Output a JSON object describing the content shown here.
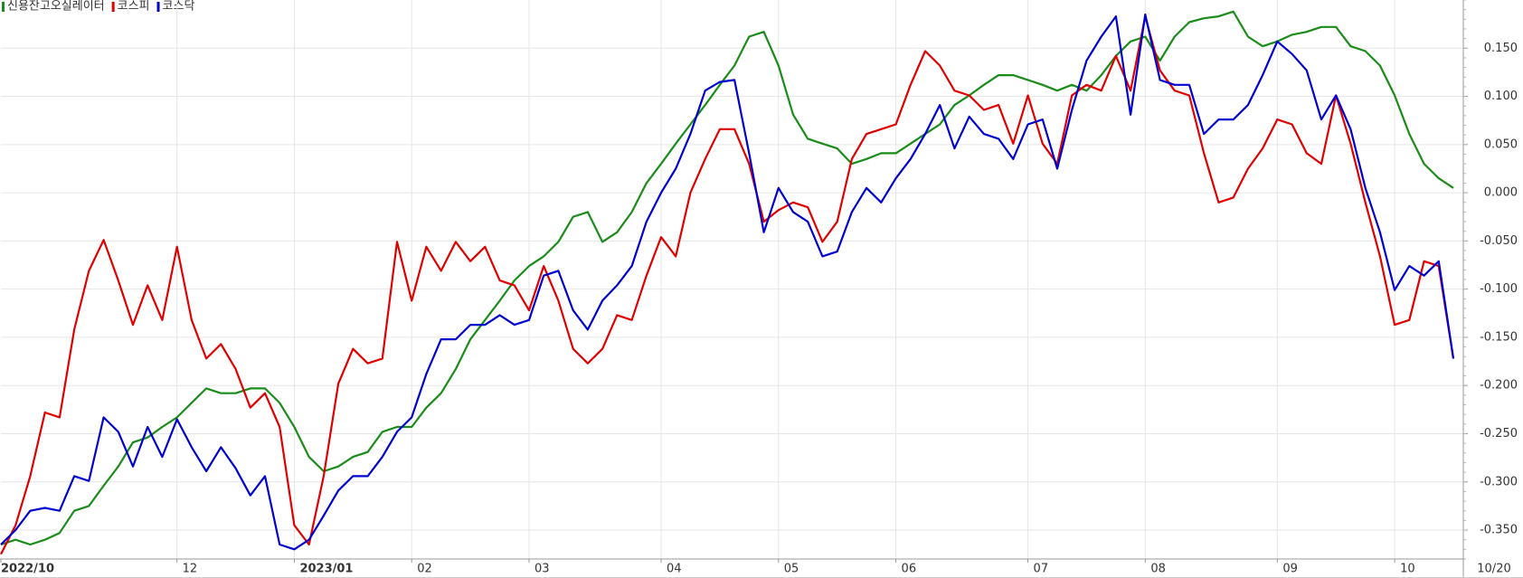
{
  "chart_data": {
    "type": "line",
    "categories": [
      "2022/10",
      null,
      null,
      null,
      null,
      null,
      null,
      null,
      null,
      null,
      null,
      null,
      "12",
      null,
      null,
      null,
      null,
      null,
      null,
      null,
      "2023/01",
      null,
      null,
      null,
      null,
      null,
      null,
      null,
      "02",
      null,
      null,
      null,
      null,
      null,
      null,
      null,
      "03",
      null,
      null,
      null,
      null,
      null,
      null,
      null,
      null,
      "04",
      null,
      null,
      null,
      null,
      null,
      null,
      null,
      "05",
      null,
      null,
      null,
      null,
      null,
      null,
      null,
      "06",
      null,
      null,
      null,
      null,
      null,
      null,
      null,
      null,
      "07",
      null,
      null,
      null,
      null,
      null,
      null,
      null,
      "08",
      null,
      null,
      null,
      null,
      null,
      null,
      null,
      null,
      "09",
      null,
      null,
      null,
      null,
      null,
      null,
      null,
      "10",
      null,
      null,
      null,
      "10/20"
    ],
    "series": [
      {
        "name": "신용잔고오실레이터",
        "color": "#1a8c1a",
        "values": [
          -0.365,
          -0.36,
          -0.365,
          -0.36,
          -0.353,
          -0.33,
          -0.325,
          -0.304,
          -0.284,
          -0.259,
          -0.254,
          -0.243,
          -0.233,
          -0.218,
          -0.203,
          -0.208,
          -0.208,
          -0.203,
          -0.203,
          -0.218,
          -0.243,
          -0.274,
          -0.289,
          -0.284,
          -0.274,
          -0.269,
          -0.248,
          -0.243,
          -0.243,
          -0.223,
          -0.208,
          -0.183,
          -0.152,
          -0.132,
          -0.112,
          -0.091,
          -0.076,
          -0.066,
          -0.051,
          -0.025,
          -0.02,
          -0.051,
          -0.041,
          -0.02,
          0.01,
          0.03,
          0.051,
          0.071,
          0.091,
          0.112,
          0.132,
          0.162,
          0.167,
          0.132,
          0.081,
          0.056,
          0.051,
          0.046,
          0.03,
          0.035,
          0.041,
          0.041,
          0.051,
          0.061,
          0.071,
          0.091,
          0.101,
          0.112,
          0.122,
          0.122,
          0.117,
          0.112,
          0.106,
          0.112,
          0.106,
          0.122,
          0.142,
          0.157,
          0.162,
          0.137,
          0.162,
          0.177,
          0.181,
          0.183,
          0.188,
          0.162,
          0.152,
          0.157,
          0.164,
          0.167,
          0.172,
          0.172,
          0.152,
          0.147,
          0.132,
          0.101,
          0.061,
          0.03,
          0.015,
          0.005
        ]
      },
      {
        "name": "코스피",
        "color": "#e00000",
        "values": [
          -0.375,
          -0.345,
          -0.294,
          -0.228,
          -0.233,
          -0.142,
          -0.081,
          -0.049,
          -0.091,
          -0.137,
          -0.096,
          -0.132,
          -0.056,
          -0.132,
          -0.172,
          -0.157,
          -0.183,
          -0.223,
          -0.208,
          -0.243,
          -0.345,
          -0.365,
          -0.294,
          -0.198,
          -0.162,
          -0.177,
          -0.172,
          -0.051,
          -0.112,
          -0.056,
          -0.081,
          -0.051,
          -0.071,
          -0.056,
          -0.091,
          -0.096,
          -0.122,
          -0.076,
          -0.112,
          -0.162,
          -0.177,
          -0.162,
          -0.127,
          -0.132,
          -0.086,
          -0.046,
          -0.066,
          0.0,
          0.035,
          0.066,
          0.066,
          0.03,
          -0.03,
          -0.018,
          -0.01,
          -0.015,
          -0.051,
          -0.03,
          0.035,
          0.061,
          0.066,
          0.071,
          0.112,
          0.147,
          0.132,
          0.106,
          0.101,
          0.086,
          0.091,
          0.051,
          0.101,
          0.051,
          0.03,
          0.101,
          0.112,
          0.106,
          0.142,
          0.106,
          0.183,
          0.127,
          0.106,
          0.101,
          0.041,
          -0.01,
          -0.005,
          0.025,
          0.046,
          0.076,
          0.071,
          0.041,
          0.03,
          0.101,
          0.051,
          -0.01,
          -0.066,
          -0.137,
          -0.132,
          -0.071,
          -0.076,
          -0.172
        ]
      },
      {
        "name": "코스닥",
        "color": "#0000d0",
        "values": [
          -0.365,
          -0.35,
          -0.33,
          -0.327,
          -0.33,
          -0.294,
          -0.299,
          -0.233,
          -0.248,
          -0.284,
          -0.243,
          -0.274,
          -0.235,
          -0.264,
          -0.289,
          -0.264,
          -0.286,
          -0.314,
          -0.294,
          -0.365,
          -0.37,
          -0.36,
          -0.335,
          -0.309,
          -0.294,
          -0.294,
          -0.274,
          -0.248,
          -0.233,
          -0.188,
          -0.152,
          -0.152,
          -0.137,
          -0.137,
          -0.127,
          -0.137,
          -0.132,
          -0.086,
          -0.081,
          -0.122,
          -0.142,
          -0.112,
          -0.096,
          -0.076,
          -0.03,
          0.0,
          0.025,
          0.061,
          0.106,
          0.115,
          0.117,
          0.041,
          -0.041,
          0.005,
          -0.02,
          -0.03,
          -0.066,
          -0.061,
          -0.02,
          0.005,
          -0.01,
          0.015,
          0.035,
          0.061,
          0.091,
          0.046,
          0.079,
          0.061,
          0.056,
          0.035,
          0.071,
          0.076,
          0.025,
          0.086,
          0.137,
          0.162,
          0.183,
          0.081,
          0.185,
          0.117,
          0.112,
          0.112,
          0.061,
          0.076,
          0.076,
          0.091,
          0.122,
          0.157,
          0.144,
          0.127,
          0.076,
          0.101,
          0.066,
          0.005,
          -0.041,
          -0.101,
          -0.076,
          -0.086,
          -0.071,
          -0.172
        ]
      }
    ],
    "ylim": [
      -0.38,
      0.2
    ],
    "yticks": [
      {
        "value": -0.35,
        "label": "-0.350"
      },
      {
        "value": -0.3,
        "label": "-0.300"
      },
      {
        "value": -0.25,
        "label": "-0.250"
      },
      {
        "value": -0.2,
        "label": "-0.200"
      },
      {
        "value": -0.15,
        "label": "-0.150"
      },
      {
        "value": -0.1,
        "label": "-0.100"
      },
      {
        "value": -0.05,
        "label": "-0.050"
      },
      {
        "value": 0,
        "label": "0.000"
      },
      {
        "value": 0.05,
        "label": "0.050"
      },
      {
        "value": 0.1,
        "label": "0.100"
      },
      {
        "value": 0.15,
        "label": "0.150"
      }
    ],
    "grid": true
  }
}
